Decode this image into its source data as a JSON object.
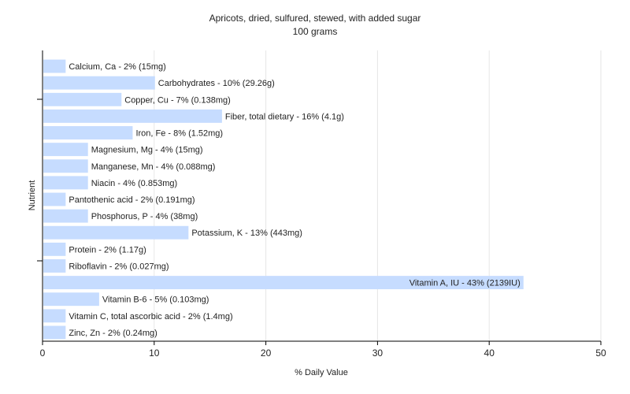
{
  "chart_data": {
    "type": "bar",
    "orientation": "horizontal",
    "title": "Apricots, dried, sulfured, stewed, with added sugar",
    "subtitle": "100 grams",
    "xlabel": "% Daily Value",
    "ylabel": "Nutrient",
    "xlim": [
      0,
      50
    ],
    "xticks": [
      0,
      10,
      20,
      30,
      40,
      50
    ],
    "grid": true,
    "bar_color": "#c6dcff",
    "categories": [
      "Calcium, Ca",
      "Carbohydrates",
      "Copper, Cu",
      "Fiber, total dietary",
      "Iron, Fe",
      "Magnesium, Mg",
      "Manganese, Mn",
      "Niacin",
      "Pantothenic acid",
      "Phosphorus, P",
      "Potassium, K",
      "Protein",
      "Riboflavin",
      "Vitamin A, IU",
      "Vitamin B-6",
      "Vitamin C, total ascorbic acid",
      "Zinc, Zn"
    ],
    "values": [
      2,
      10,
      7,
      16,
      8,
      4,
      4,
      4,
      2,
      4,
      13,
      2,
      2,
      43,
      5,
      2,
      2
    ],
    "labels": [
      "Calcium, Ca - 2% (15mg)",
      "Carbohydrates - 10% (29.26g)",
      "Copper, Cu - 7% (0.138mg)",
      "Fiber, total dietary - 16% (4.1g)",
      "Iron, Fe - 8% (1.52mg)",
      "Magnesium, Mg - 4% (15mg)",
      "Manganese, Mn - 4% (0.088mg)",
      "Niacin - 4% (0.853mg)",
      "Pantothenic acid - 2% (0.191mg)",
      "Phosphorus, P - 4% (38mg)",
      "Potassium, K - 13% (443mg)",
      "Protein - 2% (1.17g)",
      "Riboflavin - 2% (0.027mg)",
      "Vitamin A, IU - 43% (2139IU)",
      "Vitamin B-6 - 5% (0.103mg)",
      "Vitamin C, total ascorbic acid - 2% (1.4mg)",
      "Zinc, Zn - 2% (0.24mg)"
    ]
  }
}
